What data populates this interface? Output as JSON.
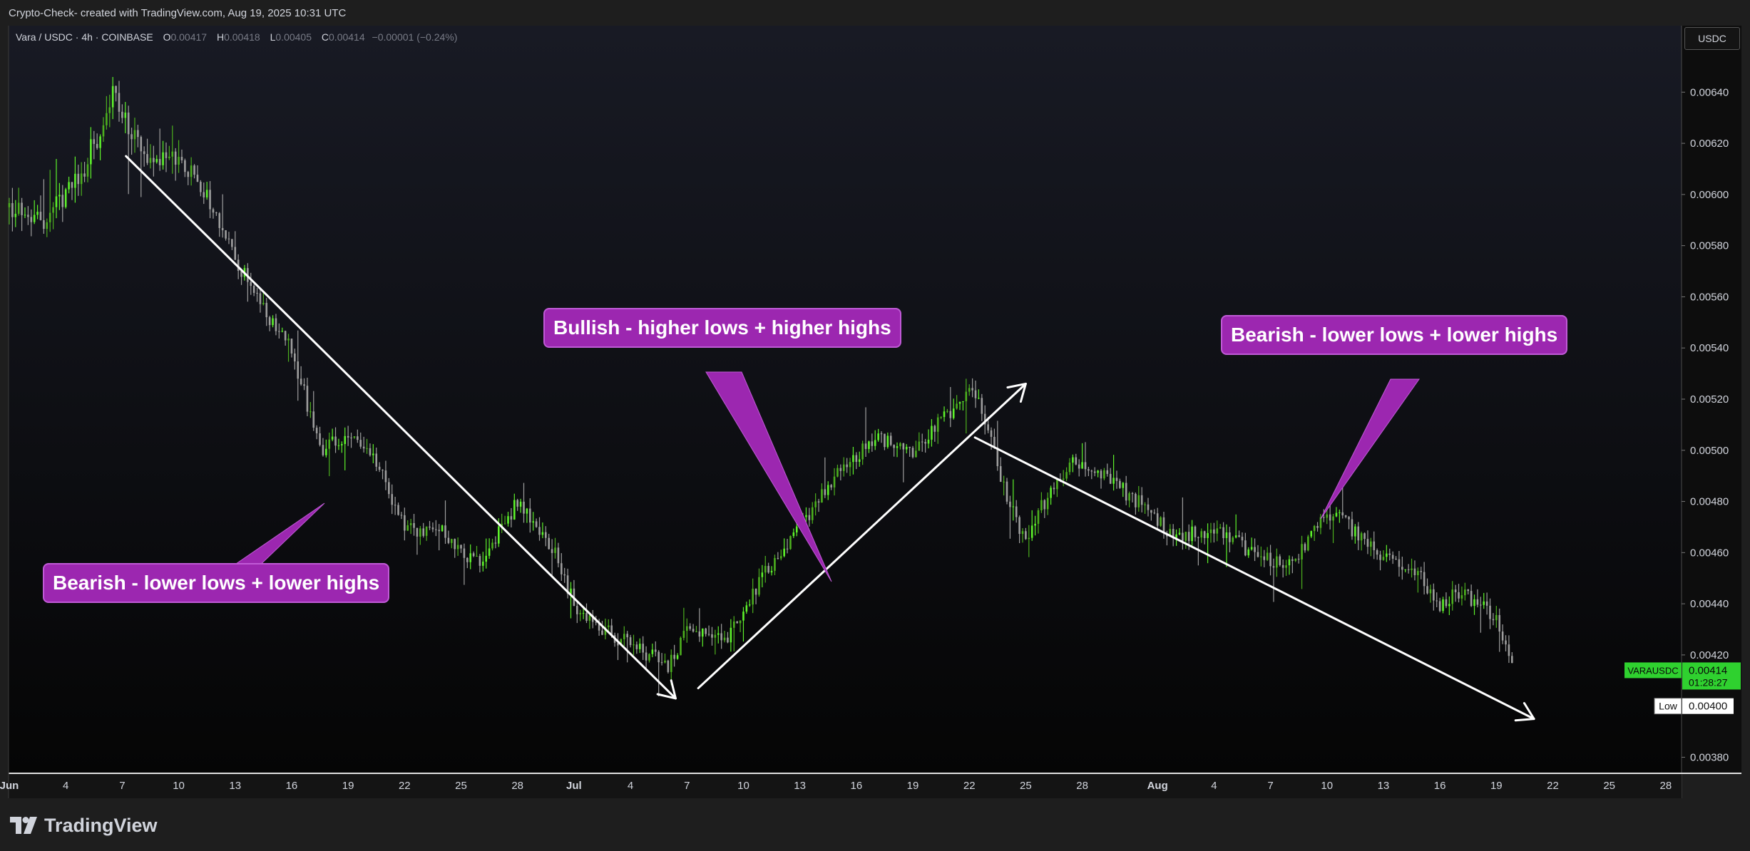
{
  "header": {
    "text": "Crypto-Check- created with TradingView.com, Aug 19, 2025 10:31 UTC"
  },
  "legend": {
    "symbol": "Vara / USDC · 4h · COINBASE",
    "o_label": "O",
    "o": "0.00417",
    "h_label": "H",
    "h": "0.00418",
    "l_label": "L",
    "l": "0.00405",
    "c_label": "C",
    "c": "0.00414",
    "change": "−0.00001 (−0.24%)"
  },
  "currency": "USDC",
  "brand": "TradingView",
  "colors": {
    "up": "#4caf1e",
    "up_bright": "#5df22b",
    "down": "#9e9e9e",
    "callout": "#9c27b0",
    "price_tag": "#2fd12f"
  },
  "callouts": {
    "left": "Bearish - lower lows + lower highs",
    "middle": "Bullish - higher lows + higher highs",
    "right": "Bearish - lower lows + lower highs"
  },
  "price_tag": {
    "symbol": "VARAUSDC",
    "price": "0.00414",
    "countdown": "01:28:27"
  },
  "low_tag": {
    "label": "Low",
    "price": "0.00400"
  },
  "chart_data": {
    "type": "candlestick",
    "title": "Vara / USDC · 4h · COINBASE",
    "y_ticks": [
      "0.00640",
      "0.00620",
      "0.00600",
      "0.00580",
      "0.00560",
      "0.00540",
      "0.00520",
      "0.00500",
      "0.00480",
      "0.00460",
      "0.00440",
      "0.00420",
      "0.00380"
    ],
    "ylim": [
      0.00374,
      0.00666
    ],
    "x_ticks": [
      "Jun",
      "4",
      "7",
      "10",
      "13",
      "16",
      "19",
      "22",
      "25",
      "28",
      "Jul",
      "4",
      "7",
      "10",
      "13",
      "16",
      "19",
      "22",
      "25",
      "28",
      "Aug",
      "4",
      "7",
      "10",
      "13",
      "16",
      "19",
      "22",
      "25",
      "28"
    ],
    "x_tick_day": [
      1,
      4,
      7,
      10,
      13,
      16,
      19,
      22,
      25,
      28,
      31,
      34,
      37,
      40,
      43,
      46,
      49,
      52,
      55,
      58,
      62,
      65,
      68,
      71,
      74,
      77,
      80,
      83,
      86,
      89
    ],
    "xlim_day": [
      1,
      89.8
    ],
    "last_day": 81,
    "price_path": [
      [
        1,
        0.00595
      ],
      [
        3,
        0.0059
      ],
      [
        5,
        0.0061
      ],
      [
        6.5,
        0.0064
      ],
      [
        7.3,
        0.00625
      ],
      [
        8.5,
        0.0061
      ],
      [
        10,
        0.00615
      ],
      [
        11.5,
        0.006
      ],
      [
        13,
        0.00575
      ],
      [
        14.5,
        0.00555
      ],
      [
        16,
        0.0054
      ],
      [
        17.5,
        0.005
      ],
      [
        19,
        0.00505
      ],
      [
        20.5,
        0.00495
      ],
      [
        22,
        0.0047
      ],
      [
        24,
        0.00468
      ],
      [
        26,
        0.00455
      ],
      [
        28,
        0.0048
      ],
      [
        30,
        0.0046
      ],
      [
        31,
        0.0044
      ],
      [
        33,
        0.00428
      ],
      [
        35,
        0.0042
      ],
      [
        36,
        0.00415
      ],
      [
        37,
        0.0043
      ],
      [
        39,
        0.00425
      ],
      [
        41,
        0.0045
      ],
      [
        43,
        0.0047
      ],
      [
        45,
        0.0049
      ],
      [
        47,
        0.00505
      ],
      [
        49,
        0.005
      ],
      [
        51,
        0.00515
      ],
      [
        52,
        0.00525
      ],
      [
        53,
        0.0051
      ],
      [
        54,
        0.0048
      ],
      [
        55,
        0.00465
      ],
      [
        56,
        0.0048
      ],
      [
        57.5,
        0.00495
      ],
      [
        59,
        0.0049
      ],
      [
        61,
        0.0048
      ],
      [
        63,
        0.00465
      ],
      [
        65,
        0.0047
      ],
      [
        67,
        0.0046
      ],
      [
        69,
        0.00455
      ],
      [
        70.5,
        0.0047
      ],
      [
        71.5,
        0.00475
      ],
      [
        73,
        0.00465
      ],
      [
        74.5,
        0.00455
      ],
      [
        76,
        0.0045
      ],
      [
        77,
        0.0044
      ],
      [
        78,
        0.00445
      ],
      [
        79,
        0.0044
      ],
      [
        80,
        0.00435
      ],
      [
        81,
        0.00414
      ]
    ],
    "trend_lines": [
      {
        "from": [
          7.2,
          0.00615
        ],
        "to": [
          36.4,
          0.00403
        ],
        "arrow": true
      },
      {
        "from": [
          37.6,
          0.00407
        ],
        "to": [
          55.0,
          0.00526
        ],
        "arrow": true
      },
      {
        "from": [
          52.3,
          0.00505
        ],
        "to": [
          82.0,
          0.00395
        ],
        "arrow": true
      }
    ],
    "current_price": 0.00414,
    "low_price": 0.004
  }
}
